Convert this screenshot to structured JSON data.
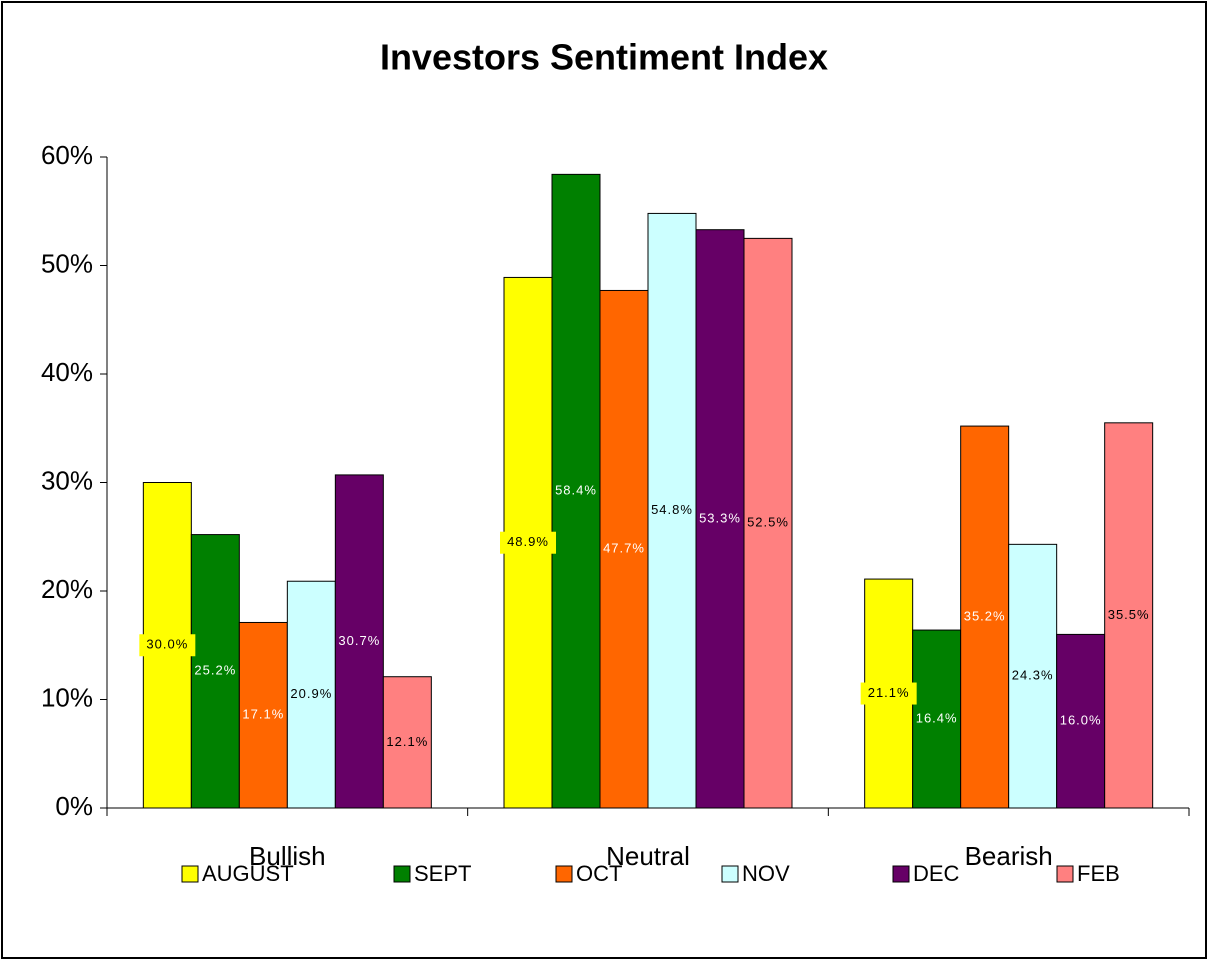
{
  "chart_data": {
    "type": "bar",
    "title": "Investors Sentiment Index",
    "categories": [
      "Bullish",
      "Neutral",
      "Bearish"
    ],
    "series": [
      {
        "name": "AUGUST",
        "color": "#ffff00",
        "values": [
          30.0,
          48.9,
          21.1
        ],
        "value_labels": [
          "30.0%",
          "48.9%",
          "21.1%"
        ]
      },
      {
        "name": "SEPT",
        "color": "#008000",
        "values": [
          25.2,
          58.4,
          16.4
        ],
        "value_labels": [
          "25.2%",
          "58.4%",
          "16.4%"
        ]
      },
      {
        "name": "OCT",
        "color": "#ff6600",
        "values": [
          17.1,
          47.7,
          35.2
        ],
        "value_labels": [
          "17.1%",
          "47.7%",
          "35.2%"
        ]
      },
      {
        "name": "NOV",
        "color": "#ccffff",
        "values": [
          20.9,
          54.8,
          24.3
        ],
        "value_labels": [
          "20.9%",
          "54.8%",
          "24.3%"
        ]
      },
      {
        "name": "DEC",
        "color": "#660066",
        "values": [
          30.7,
          53.3,
          16.0
        ],
        "value_labels": [
          "30.7%",
          "53.3%",
          "16.0%"
        ]
      },
      {
        "name": "FEB",
        "color": "#ff8080",
        "values": [
          12.1,
          52.5,
          35.5
        ],
        "value_labels": [
          "12.1%",
          "52.5%",
          "35.5%"
        ]
      }
    ],
    "ylim": [
      0,
      60
    ],
    "yticks": [
      {
        "value": 0,
        "label": "0%"
      },
      {
        "value": 10,
        "label": "10%"
      },
      {
        "value": 20,
        "label": "20%"
      },
      {
        "value": 30,
        "label": "30%"
      },
      {
        "value": 40,
        "label": "40%"
      },
      {
        "value": 50,
        "label": "50%"
      },
      {
        "value": 60,
        "label": "60%"
      }
    ],
    "grid": false,
    "legend": "bottom"
  }
}
